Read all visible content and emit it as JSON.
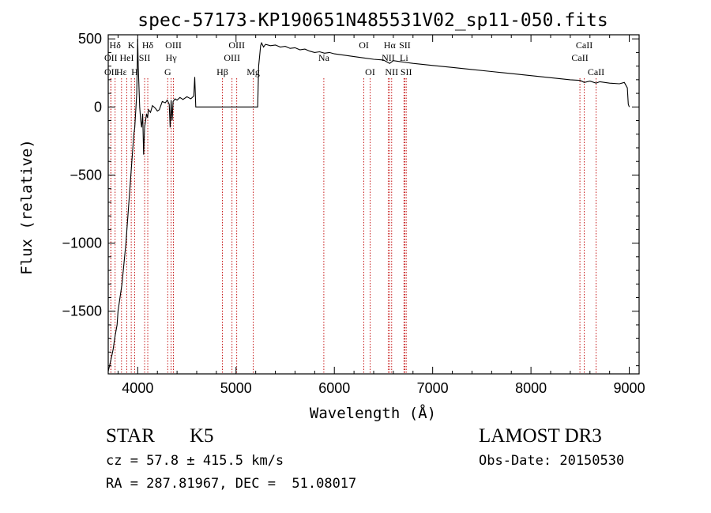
{
  "chart_data": {
    "type": "line",
    "title": "spec-57173-KP190651N485531V02_sp11-050.fits",
    "xlabel": "Wavelength (Å)",
    "ylabel": "Flux (relative)",
    "xlim": [
      3700,
      9100
    ],
    "ylim": [
      -1960,
      530
    ],
    "xticks": [
      4000,
      5000,
      6000,
      7000,
      8000,
      9000
    ],
    "yticks": [
      -1500,
      -1000,
      -500,
      0,
      500
    ],
    "tick_labels_x": [
      "4000",
      "5000",
      "6000",
      "7000",
      "8000",
      "9000"
    ],
    "tick_labels_y": [
      "−1500",
      "−1000",
      "−500",
      "0",
      "500"
    ],
    "series": [
      {
        "name": "spectrum",
        "x": [
          3700,
          3730,
          3750,
          3770,
          3790,
          3800,
          3820,
          3840,
          3860,
          3880,
          3900,
          3920,
          3940,
          3960,
          3970,
          3990,
          4000,
          4005,
          4020,
          4030,
          4040,
          4050,
          4060,
          4070,
          4080,
          4090,
          4100,
          4110,
          4130,
          4150,
          4180,
          4200,
          4220,
          4250,
          4280,
          4300,
          4320,
          4330,
          4340,
          4350,
          4360,
          4380,
          4400,
          4430,
          4460,
          4500,
          4540,
          4570,
          4580,
          4590,
          5000,
          5220,
          5230,
          5250,
          5260,
          5280,
          5300,
          5350,
          5400,
          5450,
          5500,
          5550,
          5600,
          5650,
          5700,
          5750,
          5800,
          5850,
          5900,
          5950,
          6000,
          6100,
          6200,
          6300,
          6400,
          6500,
          6562,
          6600,
          6700,
          6800,
          7000,
          7200,
          7400,
          7600,
          7800,
          8000,
          8200,
          8400,
          8500,
          8542,
          8600,
          8662,
          8700,
          8800,
          8900,
          8950,
          8980,
          8990,
          9000
        ],
        "values": [
          -1940,
          -1850,
          -1780,
          -1680,
          -1600,
          -1500,
          -1400,
          -1300,
          -1150,
          -1000,
          -800,
          -600,
          -400,
          -200,
          -150,
          100,
          500,
          300,
          0,
          -100,
          -150,
          -50,
          -350,
          -150,
          -100,
          -50,
          -80,
          -20,
          -40,
          10,
          -10,
          -30,
          -20,
          40,
          30,
          50,
          20,
          -150,
          50,
          -100,
          40,
          60,
          50,
          70,
          55,
          75,
          60,
          80,
          220,
          0,
          0,
          0,
          300,
          450,
          470,
          440,
          460,
          450,
          455,
          440,
          445,
          430,
          435,
          420,
          425,
          410,
          400,
          405,
          395,
          400,
          390,
          380,
          370,
          360,
          350,
          345,
          320,
          340,
          330,
          320,
          305,
          290,
          275,
          260,
          245,
          230,
          215,
          200,
          195,
          180,
          190,
          175,
          185,
          175,
          170,
          180,
          140,
          20,
          0
        ]
      }
    ],
    "line_markers": [
      {
        "label": "Hδ",
        "x": 3770,
        "row": 1
      },
      {
        "label": "OII",
        "x": 3727,
        "row": 2
      },
      {
        "label": "OII",
        "x": 3727,
        "row": 3
      },
      {
        "label": "K",
        "x": 3934,
        "row": 1
      },
      {
        "label": "H",
        "x": 3969,
        "row": 3
      },
      {
        "label": "HeI",
        "x": 3889,
        "row": 2
      },
      {
        "label": "Hε",
        "x": 3835,
        "row": 3
      },
      {
        "label": "SII",
        "x": 4070,
        "row": 2
      },
      {
        "label": "Hδ",
        "x": 4102,
        "row": 1
      },
      {
        "label": "OIII",
        "x": 4363,
        "row": 1
      },
      {
        "label": "Hγ",
        "x": 4340,
        "row": 2
      },
      {
        "label": "G",
        "x": 4305,
        "row": 3
      },
      {
        "label": "Hβ",
        "x": 4861,
        "row": 3
      },
      {
        "label": "OIII",
        "x": 4959,
        "row": 2
      },
      {
        "label": "OIII",
        "x": 5007,
        "row": 1
      },
      {
        "label": "Mg",
        "x": 5175,
        "row": 3
      },
      {
        "label": "Na",
        "x": 5893,
        "row": 2
      },
      {
        "label": "OI",
        "x": 6300,
        "row": 1
      },
      {
        "label": "OI",
        "x": 6364,
        "row": 3
      },
      {
        "label": "Hα",
        "x": 6563,
        "row": 1
      },
      {
        "label": "NII",
        "x": 6548,
        "row": 2
      },
      {
        "label": "NII",
        "x": 6583,
        "row": 3
      },
      {
        "label": "Li",
        "x": 6708,
        "row": 2
      },
      {
        "label": "SII",
        "x": 6717,
        "row": 1
      },
      {
        "label": "SII",
        "x": 6731,
        "row": 3
      },
      {
        "label": "CaII",
        "x": 8498,
        "row": 2
      },
      {
        "label": "CaII",
        "x": 8542,
        "row": 1
      },
      {
        "label": "CaII",
        "x": 8662,
        "row": 3
      }
    ]
  },
  "info": {
    "object_class": "STAR",
    "subclass": "K5",
    "survey": "LAMOST DR3",
    "cz": "cz = 57.8 ± 415.5 km/s",
    "obs_date": "Obs-Date: 20150530",
    "radec": "RA = 287.81967, DEC =  51.08017"
  },
  "colors": {
    "line": "#000000",
    "marker": "#c00000",
    "text": "#000000"
  }
}
